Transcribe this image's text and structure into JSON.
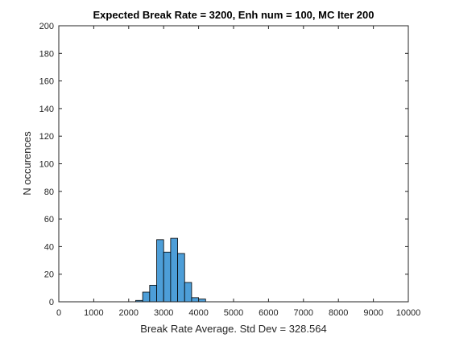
{
  "chart_data": {
    "type": "bar",
    "title": "Expected Break Rate = 3200, Enh num = 100, MC Iter 200",
    "xlabel": "Break Rate Average. Std Dev = 328.564",
    "ylabel": "N occurences",
    "xlim": [
      0,
      10000
    ],
    "ylim": [
      0,
      200
    ],
    "xticks": [
      0,
      1000,
      2000,
      3000,
      4000,
      5000,
      6000,
      7000,
      8000,
      9000,
      10000
    ],
    "yticks": [
      0,
      20,
      40,
      60,
      80,
      100,
      120,
      140,
      160,
      180,
      200
    ],
    "bin_width": 200,
    "bars": [
      {
        "x0": 2200,
        "x1": 2400,
        "value": 1
      },
      {
        "x0": 2400,
        "x1": 2600,
        "value": 7
      },
      {
        "x0": 2600,
        "x1": 2800,
        "value": 12
      },
      {
        "x0": 2800,
        "x1": 3000,
        "value": 45
      },
      {
        "x0": 3000,
        "x1": 3200,
        "value": 36
      },
      {
        "x0": 3200,
        "x1": 3400,
        "value": 46
      },
      {
        "x0": 3400,
        "x1": 3600,
        "value": 35
      },
      {
        "x0": 3600,
        "x1": 3800,
        "value": 14
      },
      {
        "x0": 3800,
        "x1": 4000,
        "value": 3
      },
      {
        "x0": 4000,
        "x1": 4200,
        "value": 2
      }
    ],
    "bar_color": "#4d9ed8",
    "edge_color": "#000000",
    "grid": false
  }
}
